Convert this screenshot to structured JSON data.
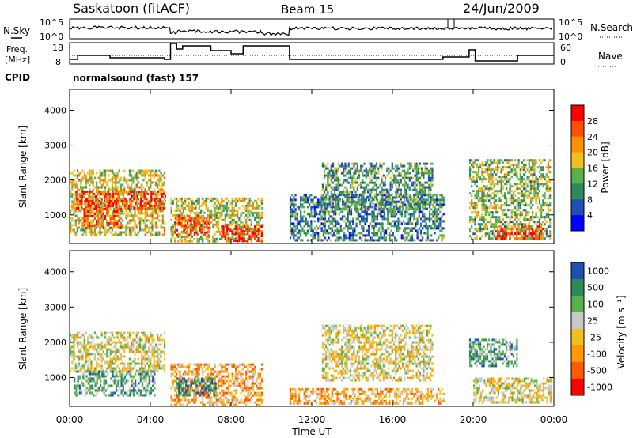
{
  "header": {
    "station": "Saskatoon (fitACF)",
    "beam": "Beam 15",
    "date": "24/Jun/2009"
  },
  "info_panels": {
    "nsky_label": "N.Sky",
    "nsky_ticks": [
      "10^5",
      "10^0"
    ],
    "nsearch_label": "N.Search",
    "nsearch_ticks": [
      "10^5",
      "10^0"
    ],
    "freq_label_1": "Freq.",
    "freq_label_2": "[MHz]",
    "freq_ticks": [
      "18",
      "8"
    ],
    "nave_label": "Nave",
    "nave_ticks": [
      "60",
      "0"
    ],
    "cpid_label": "CPID",
    "cpid_text": "normalsound (fast) 157"
  },
  "colors": {
    "power": [
      "#0000ff",
      "#1f4fb0",
      "#2e8a5a",
      "#5ab04a",
      "#f0c020",
      "#ff9000",
      "#ff5000",
      "#ff0000"
    ],
    "velocity": [
      "#ff0000",
      "#ff5a00",
      "#ff9a00",
      "#f0c020",
      "#c8c8c8",
      "#5ab04a",
      "#2e8a5a",
      "#1f4fb0"
    ]
  },
  "chart_data": [
    {
      "type": "heatmap",
      "panel": "power",
      "ylabel": "Slant Range [km]",
      "ylim": [
        180,
        4600
      ],
      "yticks": [
        "4000",
        "3000",
        "2000",
        "1000"
      ],
      "x_range": [
        "00:00",
        "24:00"
      ],
      "colorbar": {
        "label": "Power [dB]",
        "ticks": [
          "28",
          "24",
          "20",
          "16",
          "12",
          "8",
          "4"
        ],
        "range": [
          0,
          32
        ]
      },
      "echo_regions": [
        {
          "t0": 0.0,
          "t1": 4.7,
          "r0": 400,
          "r1": 2300,
          "level": 0.55
        },
        {
          "t0": 0.3,
          "t1": 4.7,
          "r0": 1200,
          "r1": 1700,
          "level": 0.85
        },
        {
          "t0": 0.6,
          "t1": 2.5,
          "r0": 600,
          "r1": 1200,
          "level": 0.8
        },
        {
          "t0": 5.0,
          "t1": 9.5,
          "r0": 250,
          "r1": 1500,
          "level": 0.5
        },
        {
          "t0": 5.2,
          "t1": 7.0,
          "r0": 400,
          "r1": 1000,
          "level": 0.85
        },
        {
          "t0": 7.5,
          "t1": 9.5,
          "r0": 250,
          "r1": 700,
          "level": 0.9
        },
        {
          "t0": 10.9,
          "t1": 18.5,
          "r0": 250,
          "r1": 1600,
          "level": 0.3
        },
        {
          "t0": 12.5,
          "t1": 18.0,
          "r0": 1200,
          "r1": 2500,
          "level": 0.35
        },
        {
          "t0": 19.8,
          "t1": 23.8,
          "r0": 300,
          "r1": 2600,
          "level": 0.45
        },
        {
          "t0": 21.0,
          "t1": 23.5,
          "r0": 300,
          "r1": 700,
          "level": 0.85
        }
      ]
    },
    {
      "type": "heatmap",
      "panel": "velocity",
      "ylabel": "Slant Range [km]",
      "ylim": [
        180,
        4600
      ],
      "yticks": [
        "4000",
        "3000",
        "2000",
        "1000"
      ],
      "x_ticks": [
        "00:00",
        "04:00",
        "08:00",
        "12:00",
        "16:00",
        "20:00",
        "00:00"
      ],
      "xlabel": "Time UT",
      "colorbar": {
        "label": "Velocity [m s⁻¹]",
        "ticks": [
          "1000",
          "500",
          "100",
          "25",
          "-25",
          "-100",
          "-500",
          "-1000"
        ]
      },
      "echo_regions": [
        {
          "t0": 0.0,
          "t1": 4.7,
          "r0": 1200,
          "r1": 2300,
          "level": 0.52
        },
        {
          "t0": 0.2,
          "t1": 4.2,
          "r0": 500,
          "r1": 1200,
          "level": 0.72
        },
        {
          "t0": 5.0,
          "t1": 9.5,
          "r0": 250,
          "r1": 1400,
          "level": 0.35
        },
        {
          "t0": 5.3,
          "t1": 7.2,
          "r0": 500,
          "r1": 1000,
          "level": 0.85
        },
        {
          "t0": 10.9,
          "t1": 18.5,
          "r0": 250,
          "r1": 700,
          "level": 0.38
        },
        {
          "t0": 12.5,
          "t1": 18.0,
          "r0": 900,
          "r1": 2500,
          "level": 0.5
        },
        {
          "t0": 19.8,
          "t1": 22.2,
          "r0": 1300,
          "r1": 2100,
          "level": 0.75
        },
        {
          "t0": 20.0,
          "t1": 23.8,
          "r0": 300,
          "r1": 1000,
          "level": 0.5
        }
      ]
    }
  ]
}
